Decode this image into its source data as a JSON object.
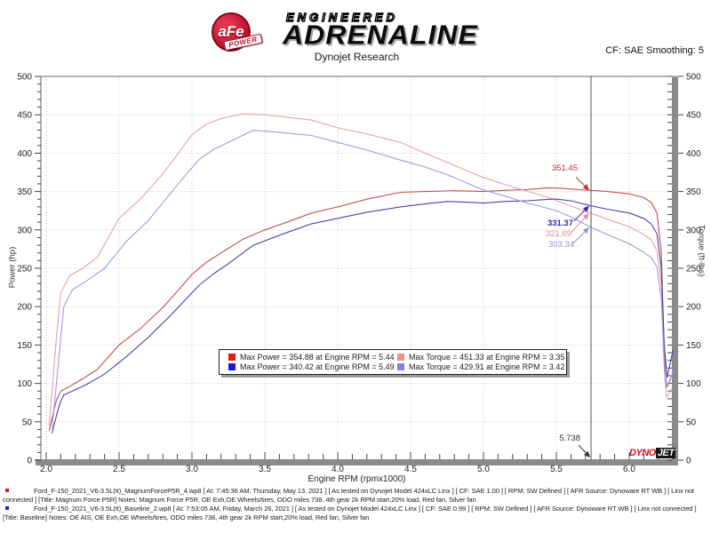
{
  "header": {
    "brand": {
      "badge_main": "aFe",
      "badge_sub": "POWER",
      "line1": "ENGINEERED",
      "line2": "ADRENALINE"
    },
    "title": "Dynojet Research",
    "correction": "CF: SAE Smoothing: 5"
  },
  "chart_data": {
    "type": "line",
    "title": "Dynojet Research",
    "xlabel": "Engine RPM (rpmx1000)",
    "ylabel_left": "Power (hp)",
    "ylabel_right": "Torque (ft-lbs)",
    "xlim": [
      1.96,
      6.3
    ],
    "ylim": [
      0,
      500
    ],
    "x_ticks_major": [
      2.0,
      2.5,
      3.0,
      3.5,
      4.0,
      4.5,
      5.0,
      5.5,
      6.0
    ],
    "x_minor_step": 0.1,
    "y_ticks_major": [
      0,
      50,
      100,
      150,
      200,
      250,
      300,
      350,
      400,
      450,
      500
    ],
    "y_minor_step": 10,
    "grid": "dotted gridlines at major ticks",
    "legend_position": "center-bottom",
    "cursor_rpm": 5.738,
    "series": [
      {
        "name": "Magnum Force P5R Power",
        "axis": "left",
        "unit": "hp",
        "color": "#c44f4f",
        "points": [
          [
            2.02,
            38
          ],
          [
            2.04,
            55
          ],
          [
            2.07,
            78
          ],
          [
            2.1,
            90
          ],
          [
            2.16,
            96
          ],
          [
            2.25,
            106
          ],
          [
            2.35,
            118
          ],
          [
            2.5,
            150
          ],
          [
            2.65,
            172
          ],
          [
            2.8,
            199
          ],
          [
            2.9,
            220
          ],
          [
            3.0,
            242
          ],
          [
            3.1,
            258
          ],
          [
            3.2,
            270
          ],
          [
            3.35,
            288
          ],
          [
            3.5,
            300
          ],
          [
            3.65,
            310
          ],
          [
            3.82,
            322
          ],
          [
            4.0,
            330
          ],
          [
            4.2,
            340
          ],
          [
            4.43,
            349
          ],
          [
            4.6,
            350
          ],
          [
            4.8,
            351
          ],
          [
            5.0,
            350
          ],
          [
            5.1,
            351
          ],
          [
            5.2,
            352
          ],
          [
            5.3,
            352.5
          ],
          [
            5.44,
            354.88
          ],
          [
            5.55,
            354
          ],
          [
            5.65,
            352.5
          ],
          [
            5.738,
            351.45
          ],
          [
            5.85,
            350
          ],
          [
            6.0,
            347
          ],
          [
            6.1,
            342
          ],
          [
            6.15,
            336
          ],
          [
            6.19,
            322
          ],
          [
            6.22,
            270
          ],
          [
            6.24,
            140
          ],
          [
            6.255,
            95
          ],
          [
            6.27,
            100
          ],
          [
            6.29,
            110
          ]
        ]
      },
      {
        "name": "Magnum Force P5R Torque",
        "axis": "right",
        "unit": "ft-lbs",
        "color": "#e7a2a2",
        "points": [
          [
            2.02,
            45
          ],
          [
            2.04,
            90
          ],
          [
            2.07,
            160
          ],
          [
            2.1,
            218
          ],
          [
            2.16,
            240
          ],
          [
            2.25,
            250
          ],
          [
            2.35,
            264
          ],
          [
            2.5,
            315
          ],
          [
            2.65,
            341
          ],
          [
            2.8,
            373
          ],
          [
            2.9,
            398
          ],
          [
            3.0,
            424
          ],
          [
            3.1,
            438
          ],
          [
            3.2,
            445
          ],
          [
            3.35,
            451.33
          ],
          [
            3.5,
            450
          ],
          [
            3.65,
            447
          ],
          [
            3.82,
            443
          ],
          [
            4.0,
            433
          ],
          [
            4.2,
            425
          ],
          [
            4.43,
            414
          ],
          [
            4.6,
            400
          ],
          [
            4.8,
            384
          ],
          [
            5.0,
            368
          ],
          [
            5.2,
            356
          ],
          [
            5.44,
            342.6
          ],
          [
            5.6,
            331
          ],
          [
            5.738,
            321.69
          ],
          [
            5.85,
            314
          ],
          [
            6.0,
            304
          ],
          [
            6.1,
            294
          ],
          [
            6.15,
            287
          ],
          [
            6.19,
            273
          ],
          [
            6.22,
            228
          ],
          [
            6.24,
            118
          ],
          [
            6.255,
            82
          ],
          [
            6.27,
            86
          ],
          [
            6.29,
            93
          ]
        ]
      },
      {
        "name": "Baseline Power",
        "axis": "left",
        "unit": "hp",
        "color": "#4545ae",
        "points": [
          [
            2.04,
            35
          ],
          [
            2.06,
            50
          ],
          [
            2.09,
            72
          ],
          [
            2.12,
            85
          ],
          [
            2.18,
            90
          ],
          [
            2.28,
            99
          ],
          [
            2.4,
            112
          ],
          [
            2.55,
            135
          ],
          [
            2.7,
            160
          ],
          [
            2.85,
            188
          ],
          [
            2.95,
            208
          ],
          [
            3.05,
            228
          ],
          [
            3.15,
            243
          ],
          [
            3.25,
            256
          ],
          [
            3.42,
            280
          ],
          [
            3.6,
            293
          ],
          [
            3.82,
            308
          ],
          [
            4.0,
            315
          ],
          [
            4.2,
            323
          ],
          [
            4.43,
            330
          ],
          [
            4.6,
            334
          ],
          [
            4.75,
            337
          ],
          [
            4.9,
            336
          ],
          [
            5.0,
            335
          ],
          [
            5.15,
            337
          ],
          [
            5.3,
            338
          ],
          [
            5.49,
            340.42
          ],
          [
            5.6,
            338
          ],
          [
            5.738,
            331.37
          ],
          [
            5.85,
            327
          ],
          [
            6.0,
            322
          ],
          [
            6.1,
            315
          ],
          [
            6.15,
            308
          ],
          [
            6.19,
            295
          ],
          [
            6.22,
            250
          ],
          [
            6.24,
            150
          ],
          [
            6.26,
            108
          ],
          [
            6.28,
            125
          ],
          [
            6.3,
            143
          ]
        ]
      },
      {
        "name": "Baseline Torque",
        "axis": "right",
        "unit": "ft-lbs",
        "color": "#9c9cdd",
        "points": [
          [
            2.04,
            40
          ],
          [
            2.06,
            80
          ],
          [
            2.09,
            140
          ],
          [
            2.12,
            200
          ],
          [
            2.18,
            222
          ],
          [
            2.28,
            234
          ],
          [
            2.4,
            250
          ],
          [
            2.55,
            285
          ],
          [
            2.7,
            312
          ],
          [
            2.85,
            347
          ],
          [
            2.95,
            370
          ],
          [
            3.05,
            392
          ],
          [
            3.15,
            405
          ],
          [
            3.25,
            414
          ],
          [
            3.42,
            429.91
          ],
          [
            3.6,
            427
          ],
          [
            3.82,
            423
          ],
          [
            4.0,
            414
          ],
          [
            4.2,
            404
          ],
          [
            4.43,
            391
          ],
          [
            4.6,
            382
          ],
          [
            4.75,
            372
          ],
          [
            4.9,
            360
          ],
          [
            5.0,
            352
          ],
          [
            5.15,
            344
          ],
          [
            5.3,
            335
          ],
          [
            5.49,
            325.7
          ],
          [
            5.6,
            317
          ],
          [
            5.738,
            303.34
          ],
          [
            5.85,
            294
          ],
          [
            6.0,
            282
          ],
          [
            6.1,
            271
          ],
          [
            6.15,
            264
          ],
          [
            6.19,
            252
          ],
          [
            6.22,
            210
          ],
          [
            6.24,
            125
          ],
          [
            6.26,
            95
          ],
          [
            6.28,
            103
          ],
          [
            6.3,
            117
          ]
        ]
      }
    ],
    "legend": {
      "items": [
        {
          "swatch": "#e31b1b",
          "label": "Max Power = 354.88 at Engine RPM = 5.44"
        },
        {
          "swatch": "#f29090",
          "label": "Max Torque = 451.33 at Engine RPM = 3.35"
        },
        {
          "swatch": "#1a1ad6",
          "label": "Max Power = 340.42 at Engine RPM = 5.49"
        },
        {
          "swatch": "#8282e2",
          "label": "Max Torque = 429.91 at Engine RPM = 3.42"
        }
      ]
    },
    "annotations": [
      {
        "id": "magnum-power-at-cursor",
        "text": "351.45",
        "value": 351.45,
        "color": "#c03232"
      },
      {
        "id": "baseline-power-at-cursor",
        "text": "331.37",
        "value": 331.37,
        "color": "#2f2fa8"
      },
      {
        "id": "magnum-torque-at-cursor",
        "text": "321.69",
        "value": 321.69,
        "color": "#e08e8e"
      },
      {
        "id": "baseline-torque-at-cursor",
        "text": "303.34",
        "value": 303.34,
        "color": "#9090dd"
      },
      {
        "id": "cursor-rpm-label",
        "text": "5.738",
        "value": 5.738,
        "color": "#333333"
      }
    ],
    "watermark": {
      "part1": "DYNO",
      "part2": "JET"
    }
  },
  "footer": {
    "runs": [
      {
        "bullet_color": "#cc2222",
        "line1": "Ford_F-150_2021_V6-3.5L(tt)_MagnumForceP5R_4.wp8 [ At: 7:45:36 AM, Thursday, May 13, 2021 ] [ As tested on Dynojet Model 424xLC Linx ] [ CF: SAE 1.00 ] [ RPM: SW Defined ] [ AFR Source: Dynoware RT WB ] [ Linx not",
        "line2": "connected ] [Title: Magnum Force P5R]  Notes: Magnum Force P5R, OE Exh,OE Wheels/tires, ODO miles 738, 4th gear 2k RPM start,20% load, Red fan, Silver fan"
      },
      {
        "bullet_color": "#2222cc",
        "line1": "Ford_F-150_2021_V6-3.5L(tt)_Baseline_2.wp8 [ At: 7:53:05 AM, Friday, March 26, 2021 ] [ As tested on Dynojet Model 424xLC Linx ] [ CF: SAE 0.99 ] [ RPM: SW Defined ] [ AFR Source: Dynoware RT WB ] [ Linx not connected ]",
        "line2": "[Title: Baseline]  Notes: OE AIS, OE Exh,OE Wheels/tires, ODO miles 738, 4th gear 2k RPM start,20% load, Red fan, Silver fan"
      }
    ]
  }
}
